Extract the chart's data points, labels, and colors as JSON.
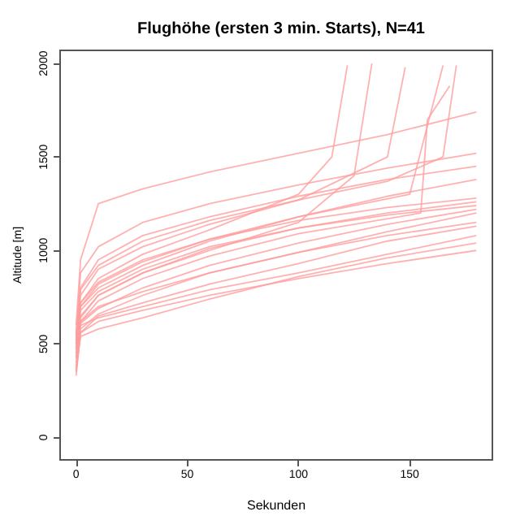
{
  "chart_data": {
    "type": "line",
    "title": "Flughöhe (ersten 3 min. Starts), N=41",
    "xlabel": "Sekunden",
    "ylabel": "Altitude [m]",
    "xlim": [
      -7.2,
      187.2
    ],
    "ylim": [
      -120,
      2070
    ],
    "xticks": [
      0,
      50,
      100,
      150
    ],
    "yticks": [
      0,
      500,
      1000,
      1500,
      2000
    ],
    "grid": false,
    "marker": "none",
    "line_style": "solid",
    "series": [
      {
        "color": "#ff9e9e",
        "x": [
          0,
          2,
          10,
          30,
          60,
          100,
          140,
          180
        ],
        "values": [
          330,
          560,
          650,
          720,
          820,
          930,
          1050,
          1130
        ]
      },
      {
        "color": "#ff9e9e",
        "x": [
          0,
          2,
          10,
          30,
          60,
          100,
          140,
          180
        ],
        "values": [
          350,
          600,
          640,
          700,
          790,
          880,
          980,
          1080
        ]
      },
      {
        "color": "#ff9e9e",
        "x": [
          0,
          2,
          10,
          30,
          60,
          100,
          140,
          180
        ],
        "values": [
          380,
          540,
          580,
          640,
          740,
          860,
          960,
          1040
        ]
      },
      {
        "color": "#ff9e9e",
        "x": [
          0,
          2,
          10,
          30,
          60,
          100,
          140,
          180
        ],
        "values": [
          420,
          610,
          690,
          800,
          920,
          1040,
          1140,
          1220
        ]
      },
      {
        "color": "#ff9e9e",
        "x": [
          0,
          2,
          10,
          30,
          60,
          100,
          140,
          180
        ],
        "values": [
          450,
          620,
          700,
          780,
          880,
          990,
          1100,
          1200
        ]
      },
      {
        "color": "#ff9e9e",
        "x": [
          0,
          2,
          10,
          30,
          60,
          100,
          140,
          180
        ],
        "values": [
          470,
          650,
          760,
          880,
          1010,
          1120,
          1200,
          1260
        ]
      },
      {
        "color": "#ff9e9e",
        "x": [
          0,
          2,
          10,
          30,
          60,
          100,
          140,
          180
        ],
        "values": [
          500,
          720,
          830,
          950,
          1060,
          1160,
          1230,
          1280
        ]
      },
      {
        "color": "#ff9e9e",
        "x": [
          0,
          2,
          10,
          30,
          60,
          100,
          140,
          180
        ],
        "values": [
          520,
          700,
          800,
          920,
          1050,
          1180,
          1290,
          1380
        ]
      },
      {
        "color": "#ff9e9e",
        "x": [
          0,
          2,
          10,
          30,
          60,
          100,
          140,
          180
        ],
        "values": [
          540,
          800,
          950,
          1080,
          1180,
          1290,
          1380,
          1450
        ]
      },
      {
        "color": "#ff9e9e",
        "x": [
          0,
          2,
          10,
          30,
          60,
          100,
          140,
          180
        ],
        "values": [
          560,
          880,
          1020,
          1150,
          1250,
          1350,
          1440,
          1520
        ]
      },
      {
        "color": "#ff9e9e",
        "x": [
          0,
          2,
          10,
          30,
          60,
          100,
          140,
          180
        ],
        "values": [
          600,
          950,
          1250,
          1330,
          1420,
          1520,
          1620,
          1740
        ]
      },
      {
        "color": "#ff9e9e",
        "x": [
          0,
          2,
          10,
          30,
          60,
          100,
          140,
          180
        ],
        "values": [
          480,
          680,
          780,
          900,
          1020,
          1120,
          1190,
          1240
        ]
      },
      {
        "color": "#ff9e9e",
        "x": [
          0,
          2,
          10,
          30,
          60,
          100,
          140,
          180
        ],
        "values": [
          400,
          580,
          660,
          760,
          880,
          990,
          1080,
          1150
        ]
      },
      {
        "color": "#ff9e9e",
        "x": [
          0,
          2,
          10,
          30,
          60,
          100,
          140,
          180
        ],
        "values": [
          360,
          560,
          620,
          680,
          760,
          850,
          930,
          1000
        ]
      },
      {
        "color": "#ff9e9e",
        "x": [
          0,
          2,
          10,
          30,
          60,
          100,
          115,
          122
        ],
        "values": [
          500,
          720,
          850,
          980,
          1110,
          1300,
          1500,
          1990
        ]
      },
      {
        "color": "#ff9e9e",
        "x": [
          0,
          2,
          10,
          30,
          60,
          100,
          125,
          133
        ],
        "values": [
          450,
          640,
          760,
          880,
          1000,
          1150,
          1400,
          2000
        ]
      },
      {
        "color": "#ff9e9e",
        "x": [
          0,
          2,
          10,
          30,
          60,
          100,
          140,
          148
        ],
        "values": [
          520,
          760,
          900,
          1020,
          1140,
          1270,
          1500,
          1980
        ]
      },
      {
        "color": "#ff9e9e",
        "x": [
          0,
          2,
          10,
          30,
          60,
          100,
          150,
          165
        ],
        "values": [
          480,
          700,
          820,
          940,
          1060,
          1180,
          1300,
          1990
        ]
      },
      {
        "color": "#ff9e9e",
        "x": [
          0,
          2,
          10,
          30,
          60,
          100,
          155,
          158,
          168
        ],
        "values": [
          430,
          620,
          730,
          850,
          970,
          1090,
          1200,
          1700,
          1880
        ]
      },
      {
        "color": "#ff9e9e",
        "x": [
          0,
          2,
          10,
          30,
          60,
          100,
          140,
          165,
          171
        ],
        "values": [
          550,
          790,
          920,
          1050,
          1160,
          1270,
          1370,
          1500,
          1990
        ]
      }
    ]
  }
}
